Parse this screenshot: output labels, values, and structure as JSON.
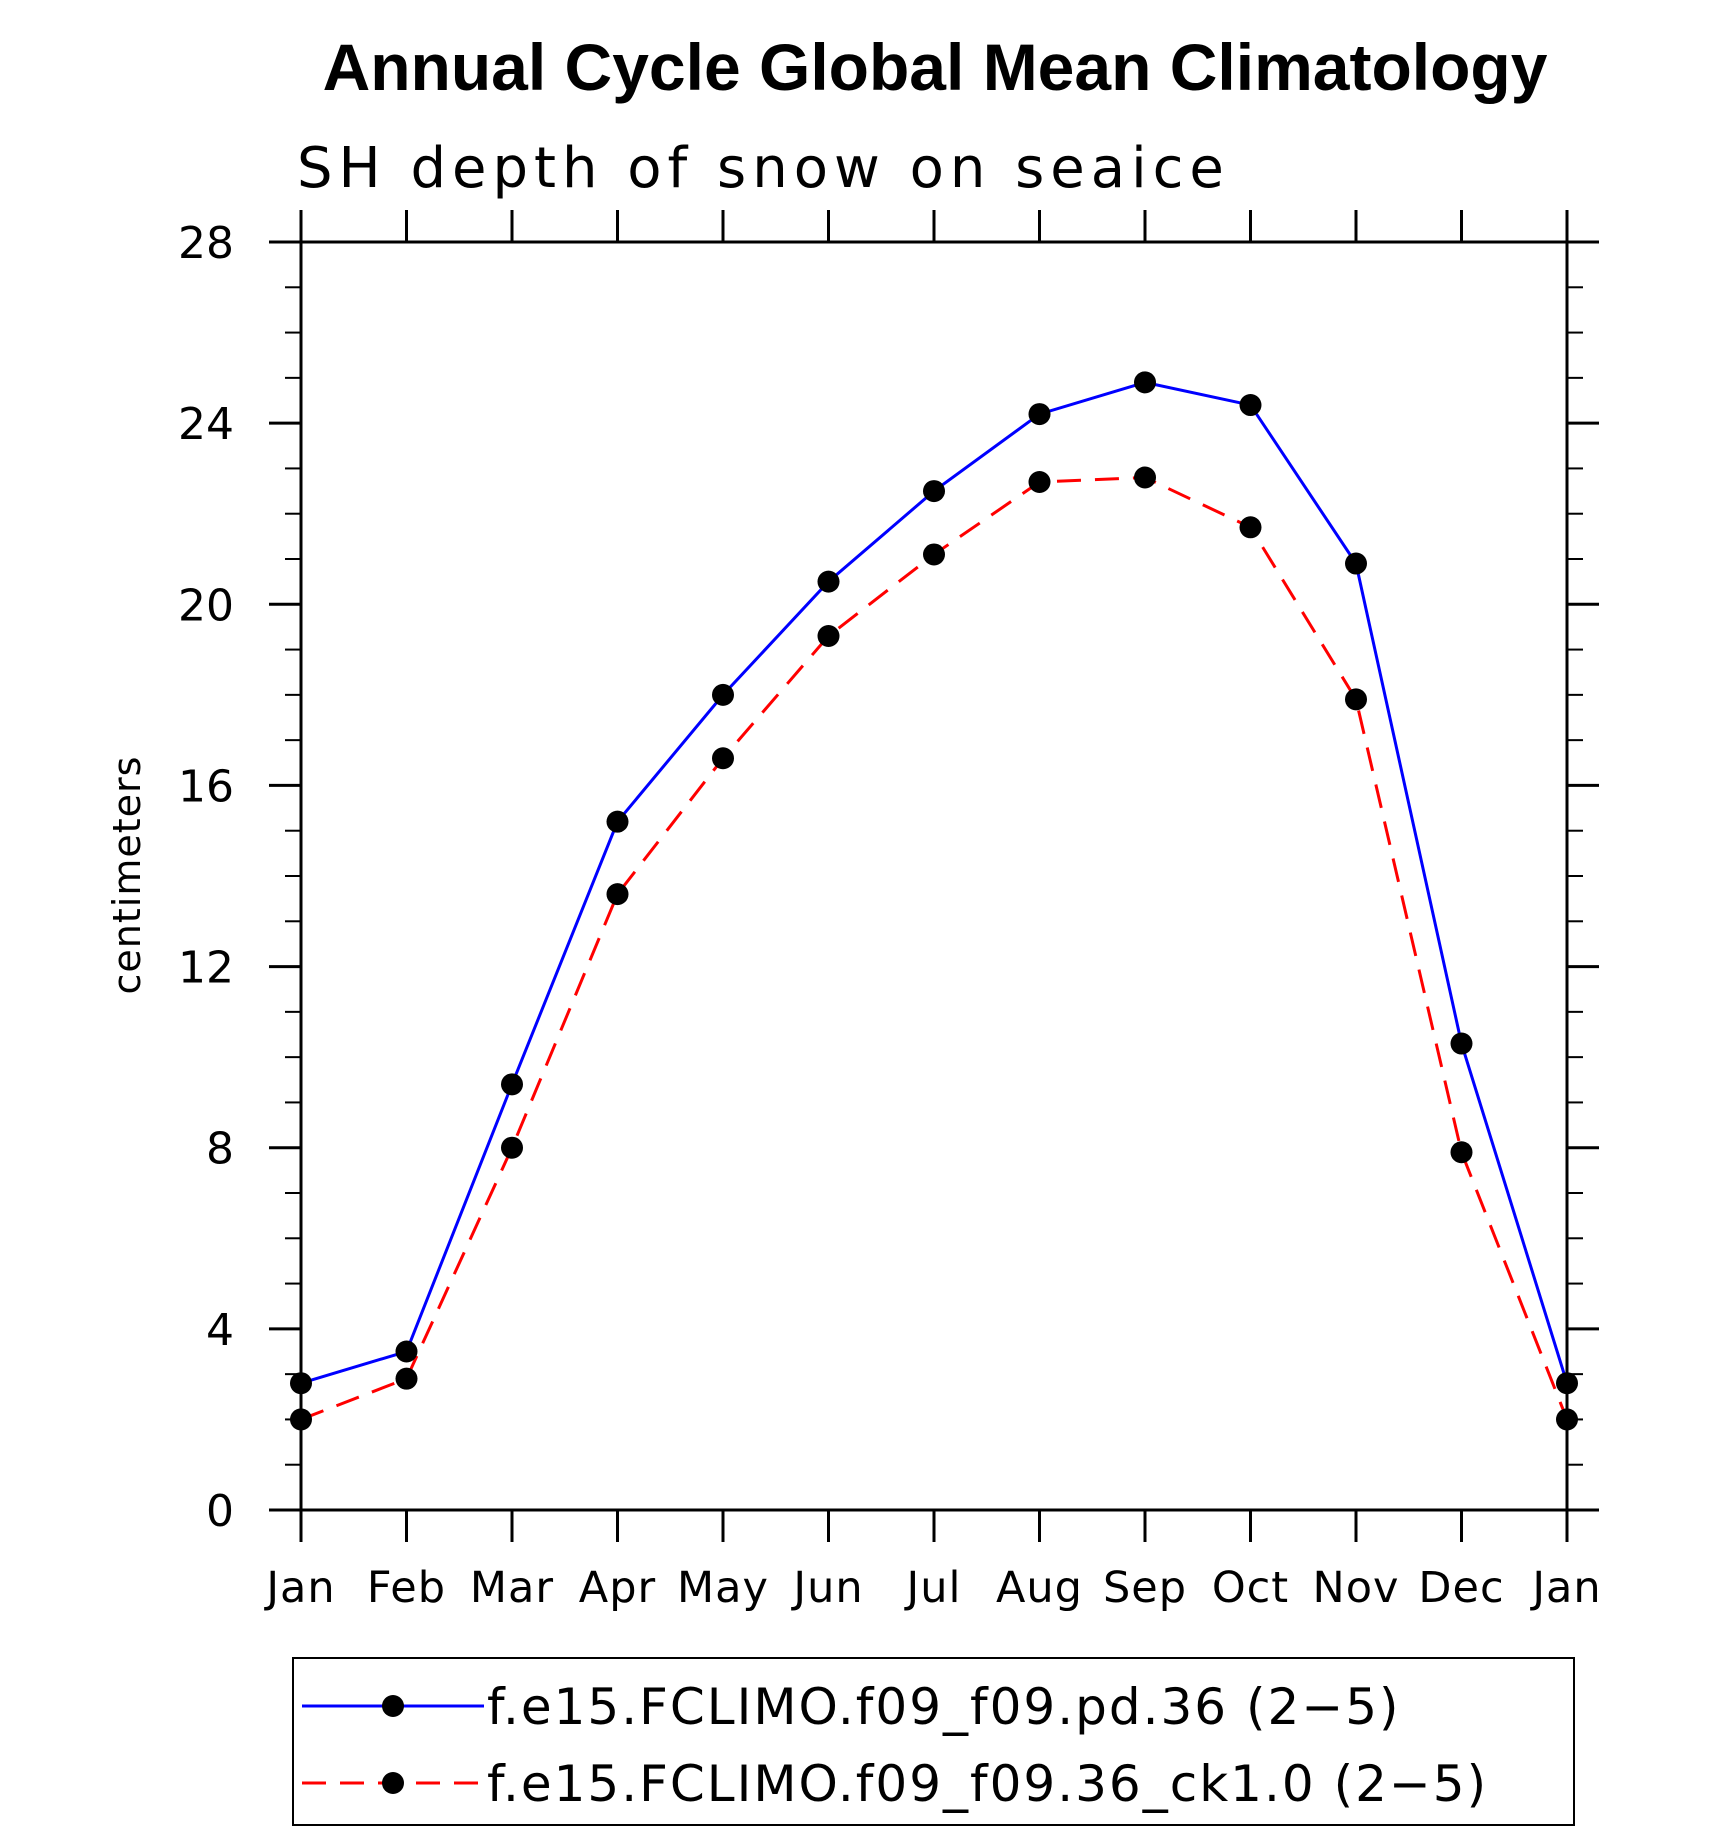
{
  "chart_data": {
    "type": "line",
    "title": "Annual Cycle Global Mean Climatology",
    "subtitle": "SH depth of snow on seaice",
    "ylabel": "centimeters",
    "xlabel": "",
    "ylim": [
      0,
      28
    ],
    "yticks": [
      "0",
      "4",
      "8",
      "12",
      "16",
      "20",
      "24",
      "28"
    ],
    "categories": [
      "Jan",
      "Feb",
      "Mar",
      "Apr",
      "May",
      "Jun",
      "Jul",
      "Aug",
      "Sep",
      "Oct",
      "Nov",
      "Dec",
      "Jan"
    ],
    "series": [
      {
        "name": "f.e15.FCLIMO.f09_f09.pd.36 (2−5)",
        "color": "#0000ff",
        "dashed": false,
        "values": [
          2.8,
          3.5,
          9.4,
          15.2,
          18.0,
          20.5,
          22.5,
          24.2,
          24.9,
          24.4,
          20.9,
          10.3,
          2.8
        ]
      },
      {
        "name": "f.e15.FCLIMO.f09_f09.36_ck1.0 (2−5)",
        "color": "#ff0000",
        "dashed": true,
        "values": [
          2.0,
          2.9,
          8.0,
          13.6,
          16.6,
          19.3,
          21.1,
          22.7,
          22.8,
          21.7,
          17.9,
          7.9,
          2.0
        ]
      }
    ],
    "grid": false,
    "legend_position": "bottom"
  }
}
